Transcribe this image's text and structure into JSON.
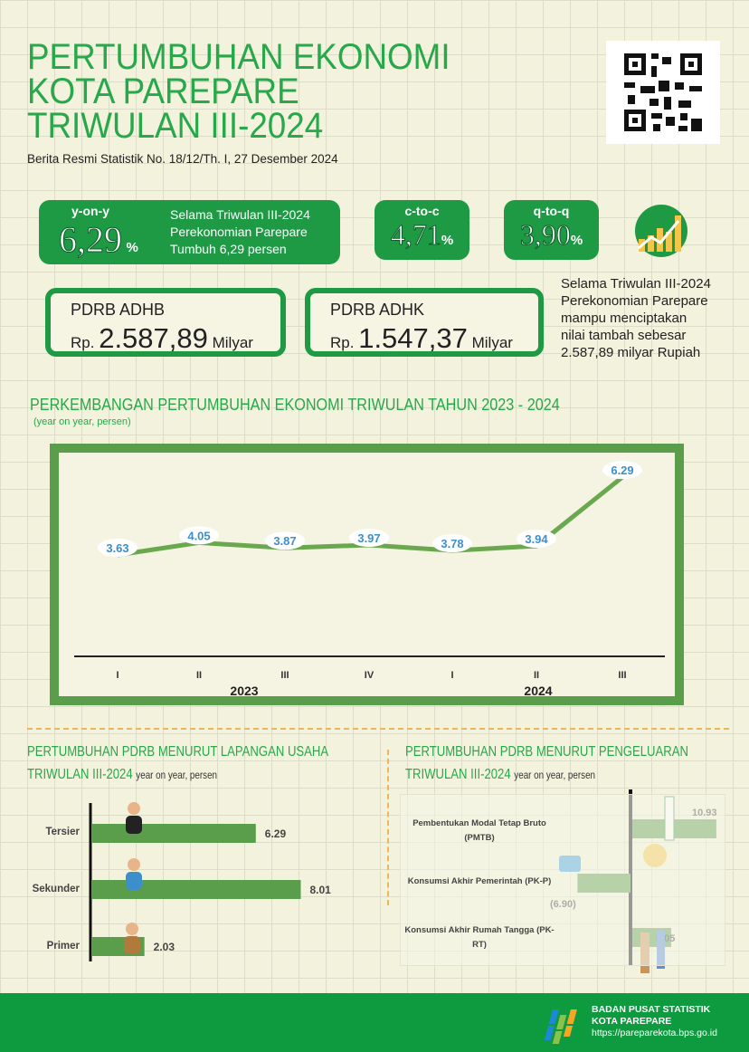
{
  "header": {
    "title_lines": [
      "PERTUMBUHAN EKONOMI",
      "KOTA PAREPARE",
      "TRIWULAN III-2024"
    ],
    "subtitle": "Berita Resmi Statistik No. 18/12/Th. I, 27 Desember 2024",
    "qr_icon": "qr-code-icon"
  },
  "stats": {
    "yoy": {
      "label": "y-on-y",
      "value": "6,29",
      "unit": "%",
      "desc": [
        "Selama Triwulan III-2024",
        "Perekonomian Parepare",
        "Tumbuh 6,29 persen"
      ]
    },
    "ctc": {
      "label": "c-to-c",
      "value": "4,71",
      "unit": "%"
    },
    "qtq": {
      "label": "q-to-q",
      "value": "3,90",
      "unit": "%"
    },
    "icon": "growth-chart-icon"
  },
  "pdrb": {
    "adhb": {
      "label": "PDRB ADHB",
      "prefix": "Rp.",
      "value": "2.587,89",
      "unit": "Milyar"
    },
    "adhk": {
      "label": "PDRB ADHK",
      "prefix": "Rp.",
      "value": "1.547,37",
      "unit": "Milyar"
    },
    "note": [
      "Selama Triwulan III-2024",
      "Perekonomian Parepare",
      "mampu menciptakan",
      "nilai tambah sebesar",
      "2.587,89 milyar Rupiah"
    ]
  },
  "chart_data": [
    {
      "type": "line",
      "title": "PERKEMBANGAN PERTUMBUHAN EKONOMI TRIWULAN  TAHUN 2023 - 2024",
      "subtitle": "(year on year, persen)",
      "categories": [
        "I",
        "II",
        "III",
        "IV",
        "I",
        "II",
        "III"
      ],
      "years": [
        "2023",
        "2024"
      ],
      "values": [
        3.63,
        4.05,
        3.87,
        3.97,
        3.78,
        3.94,
        6.29
      ],
      "labels": [
        "3.63",
        "4.05",
        "3.87",
        "3.97",
        "3.78",
        "3.94",
        "6.29"
      ],
      "color": "#6aa84f",
      "label_color": "#3d8fcc"
    },
    {
      "type": "bar",
      "orientation": "horizontal",
      "title": "PERTUMBUHAN PDRB MENURUT LAPANGAN USAHA",
      "title2": "TRIWULAN III-2024",
      "subtitle": "year on year, persen",
      "categories": [
        "Tersier",
        "Sekunder",
        "Primer"
      ],
      "values": [
        6.29,
        8.01,
        2.03
      ],
      "labels": [
        "6.29",
        "8.01",
        "2.03"
      ],
      "color": "#5a9e4b"
    },
    {
      "type": "bar",
      "orientation": "horizontal",
      "title": "PERTUMBUHAN PDRB MENURUT PENGELUARAN",
      "title2": "TRIWULAN III-2024",
      "subtitle": "year on year, persen",
      "categories": [
        [
          "Pembentukan Modal Tetap Bruto",
          "(PMTB)"
        ],
        [
          "Konsumsi Akhir Pemerintah (PK-P)"
        ],
        [
          "Konsumsi Akhir Rumah Tangga (PK-",
          "RT)"
        ]
      ],
      "values": [
        10.93,
        -6.9,
        5.05
      ],
      "labels": [
        "10.93",
        "(6.90)",
        "5.05"
      ],
      "color": "#5a9e4b"
    }
  ],
  "footer": {
    "org": "BADAN PUSAT STATISTIK",
    "city": "KOTA PAREPARE",
    "url": "https://pareparekota.bps.go.id",
    "logo": "bps-logo"
  }
}
